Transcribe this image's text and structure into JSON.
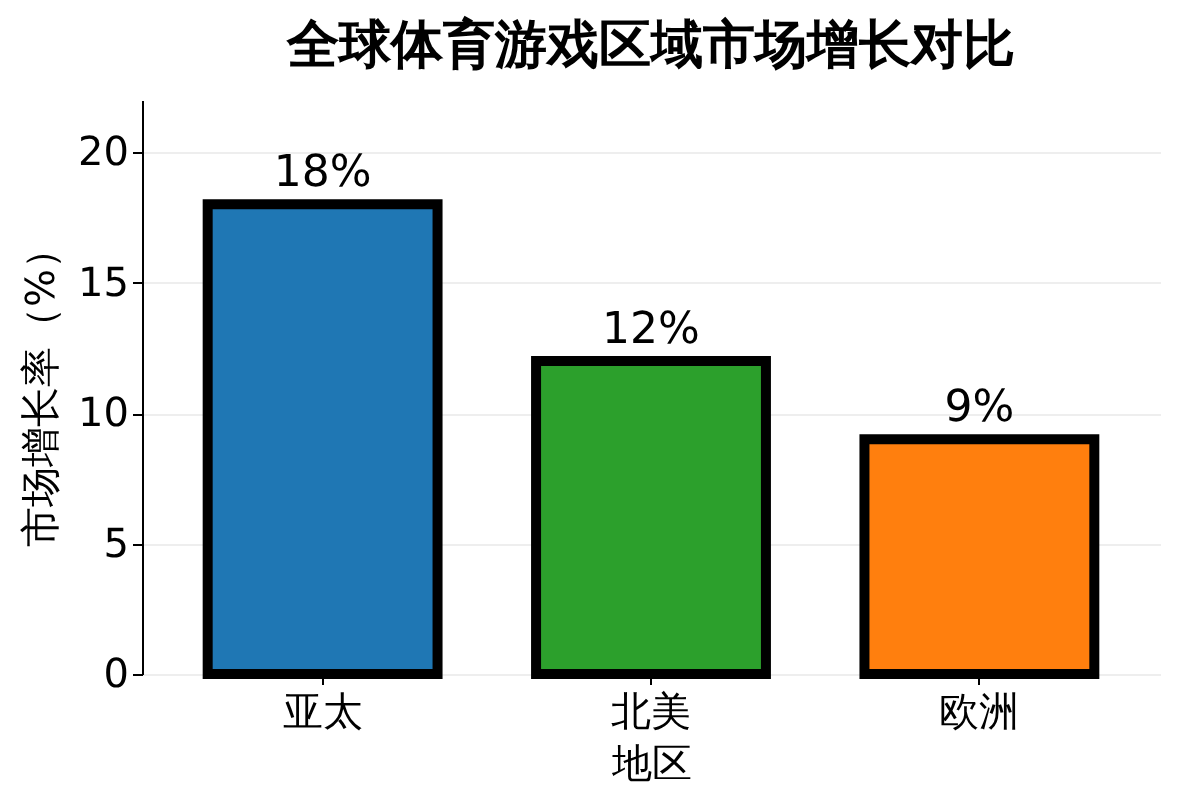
{
  "chart_data": {
    "type": "bar",
    "title": "全球体育游戏区域市场增长对比",
    "xlabel": "地区",
    "ylabel": "市场增长率（%）",
    "categories": [
      "亚太",
      "北美",
      "欧洲"
    ],
    "values": [
      18,
      12,
      9
    ],
    "colors": [
      "#1f77b4",
      "#2ca02c",
      "#ff7f0e"
    ],
    "value_labels": [
      "18%",
      "12%",
      "9%"
    ],
    "ylim": [
      0,
      22
    ],
    "yticks": [
      0,
      5,
      10,
      15,
      20
    ],
    "grid": "y"
  }
}
